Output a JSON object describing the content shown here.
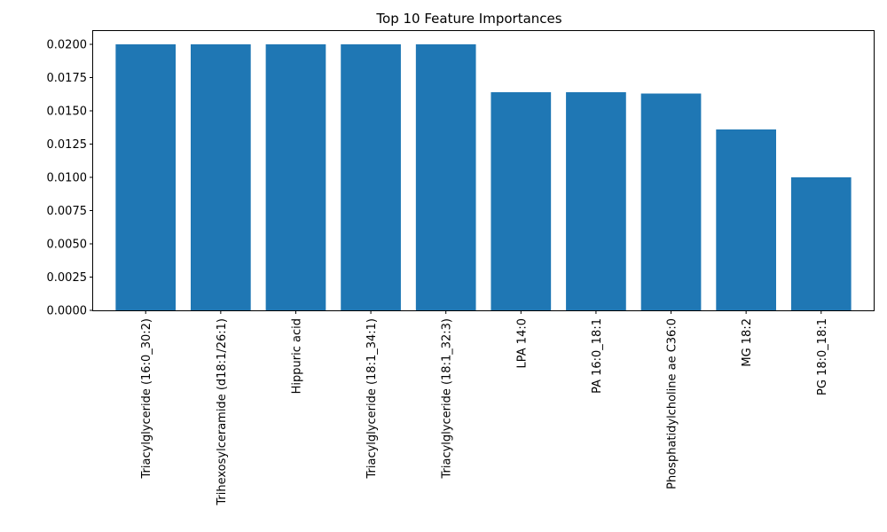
{
  "chart_data": {
    "type": "bar",
    "title": "Top 10 Feature Importances",
    "xlabel": "",
    "ylabel": "",
    "categories": [
      "Triacylglyceride (16:0_30:2)",
      "Trihexosylceramide (d18:1/26:1)",
      "Hippuric acid",
      "Triacylglyceride (18:1_34:1)",
      "Triacylglyceride (18:1_32:3)",
      "LPA 14:0",
      "PA 16:0_18:1",
      "Phosphatidylcholine ae C36:0",
      "MG 18:2",
      "PG 18:0_18:1"
    ],
    "values": [
      0.02,
      0.02,
      0.02,
      0.02,
      0.02,
      0.0164,
      0.0164,
      0.0163,
      0.0136,
      0.01
    ],
    "ylim": [
      0,
      0.021
    ],
    "yticks": [
      0.0,
      0.0025,
      0.005,
      0.0075,
      0.01,
      0.0125,
      0.015,
      0.0175,
      0.02
    ],
    "ytick_labels": [
      "0.0000",
      "0.0025",
      "0.0050",
      "0.0075",
      "0.0100",
      "0.0125",
      "0.0150",
      "0.0175",
      "0.0200"
    ],
    "bar_color": "#1f77b4",
    "grid": false,
    "legend": "none"
  }
}
